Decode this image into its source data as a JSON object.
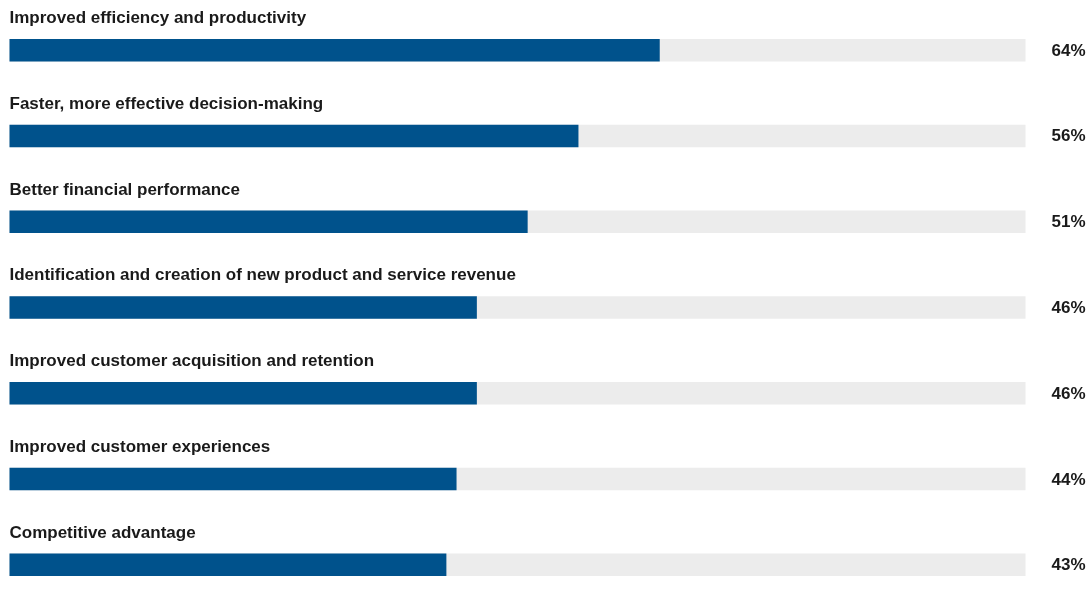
{
  "chart_data": {
    "type": "bar",
    "orientation": "horizontal",
    "value_labels": [
      "64%",
      "56%",
      "51%",
      "46%",
      "46%",
      "44%",
      "43%"
    ],
    "categories": [
      "Improved efficiency and productivity",
      "Faster, more effective decision-making",
      "Better financial performance",
      "Identification and creation of new product and service revenue",
      "Improved customer acquisition and retention",
      "Improved customer experiences",
      "Competitive advantage"
    ],
    "values": [
      64,
      56,
      51,
      46,
      46,
      44,
      43
    ],
    "color": "#00528c"
  }
}
